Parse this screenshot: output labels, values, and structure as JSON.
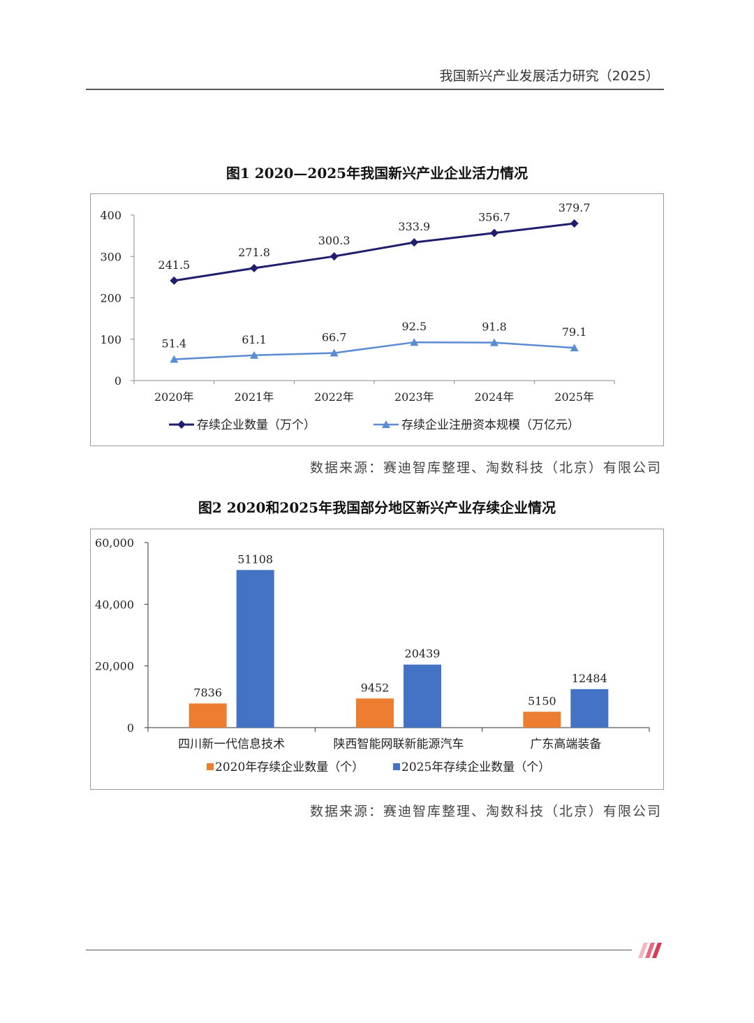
{
  "header": {
    "title": "我国新兴产业发展活力研究（2025）"
  },
  "fig1": {
    "title": "图1 2020—2025年我国新兴产业企业活力情况",
    "source": "数据来源：赛迪智库整理、淘数科技（北京）有限公司"
  },
  "fig2": {
    "title": "图2 2020和2025年我国部分地区新兴产业存续企业情况",
    "source": "数据来源：赛迪智库整理、淘数科技（北京）有限公司"
  },
  "chart_data": [
    {
      "type": "line",
      "title": "图1 2020—2025年我国新兴产业企业活力情况",
      "categories": [
        "2020年",
        "2021年",
        "2022年",
        "2023年",
        "2024年",
        "2025年"
      ],
      "ylim": [
        0,
        400
      ],
      "yticks": [
        0,
        100,
        200,
        300,
        400
      ],
      "grid": false,
      "legend": "bottom",
      "series": [
        {
          "name": "存续企业数量（万个）",
          "values": [
            241.5,
            271.8,
            300.3,
            333.9,
            356.7,
            379.7
          ],
          "color": "#1f1f6e",
          "marker": "diamond"
        },
        {
          "name": "存续企业注册资本规模（万亿元）",
          "values": [
            51.4,
            61.1,
            66.7,
            92.5,
            91.8,
            79.1
          ],
          "color": "#5b8bd0",
          "marker": "triangle"
        }
      ]
    },
    {
      "type": "bar",
      "title": "图2 2020和2025年我国部分地区新兴产业存续企业情况",
      "categories": [
        "四川新一代信息技术",
        "陕西智能网联新能源汽车",
        "广东高端装备"
      ],
      "ylim": [
        0,
        60000
      ],
      "yticks": [
        0,
        20000,
        40000,
        60000
      ],
      "ytick_labels": [
        "0",
        "20,000",
        "40,000",
        "60,000"
      ],
      "grid": false,
      "legend": "bottom",
      "series": [
        {
          "name": "2020年存续企业数量（个）",
          "values": [
            7836,
            9452,
            5150
          ],
          "color": "#ed7d31"
        },
        {
          "name": "2025年存续企业数量（个）",
          "values": [
            51108,
            20439,
            12484
          ],
          "color": "#4472c4"
        }
      ]
    }
  ]
}
